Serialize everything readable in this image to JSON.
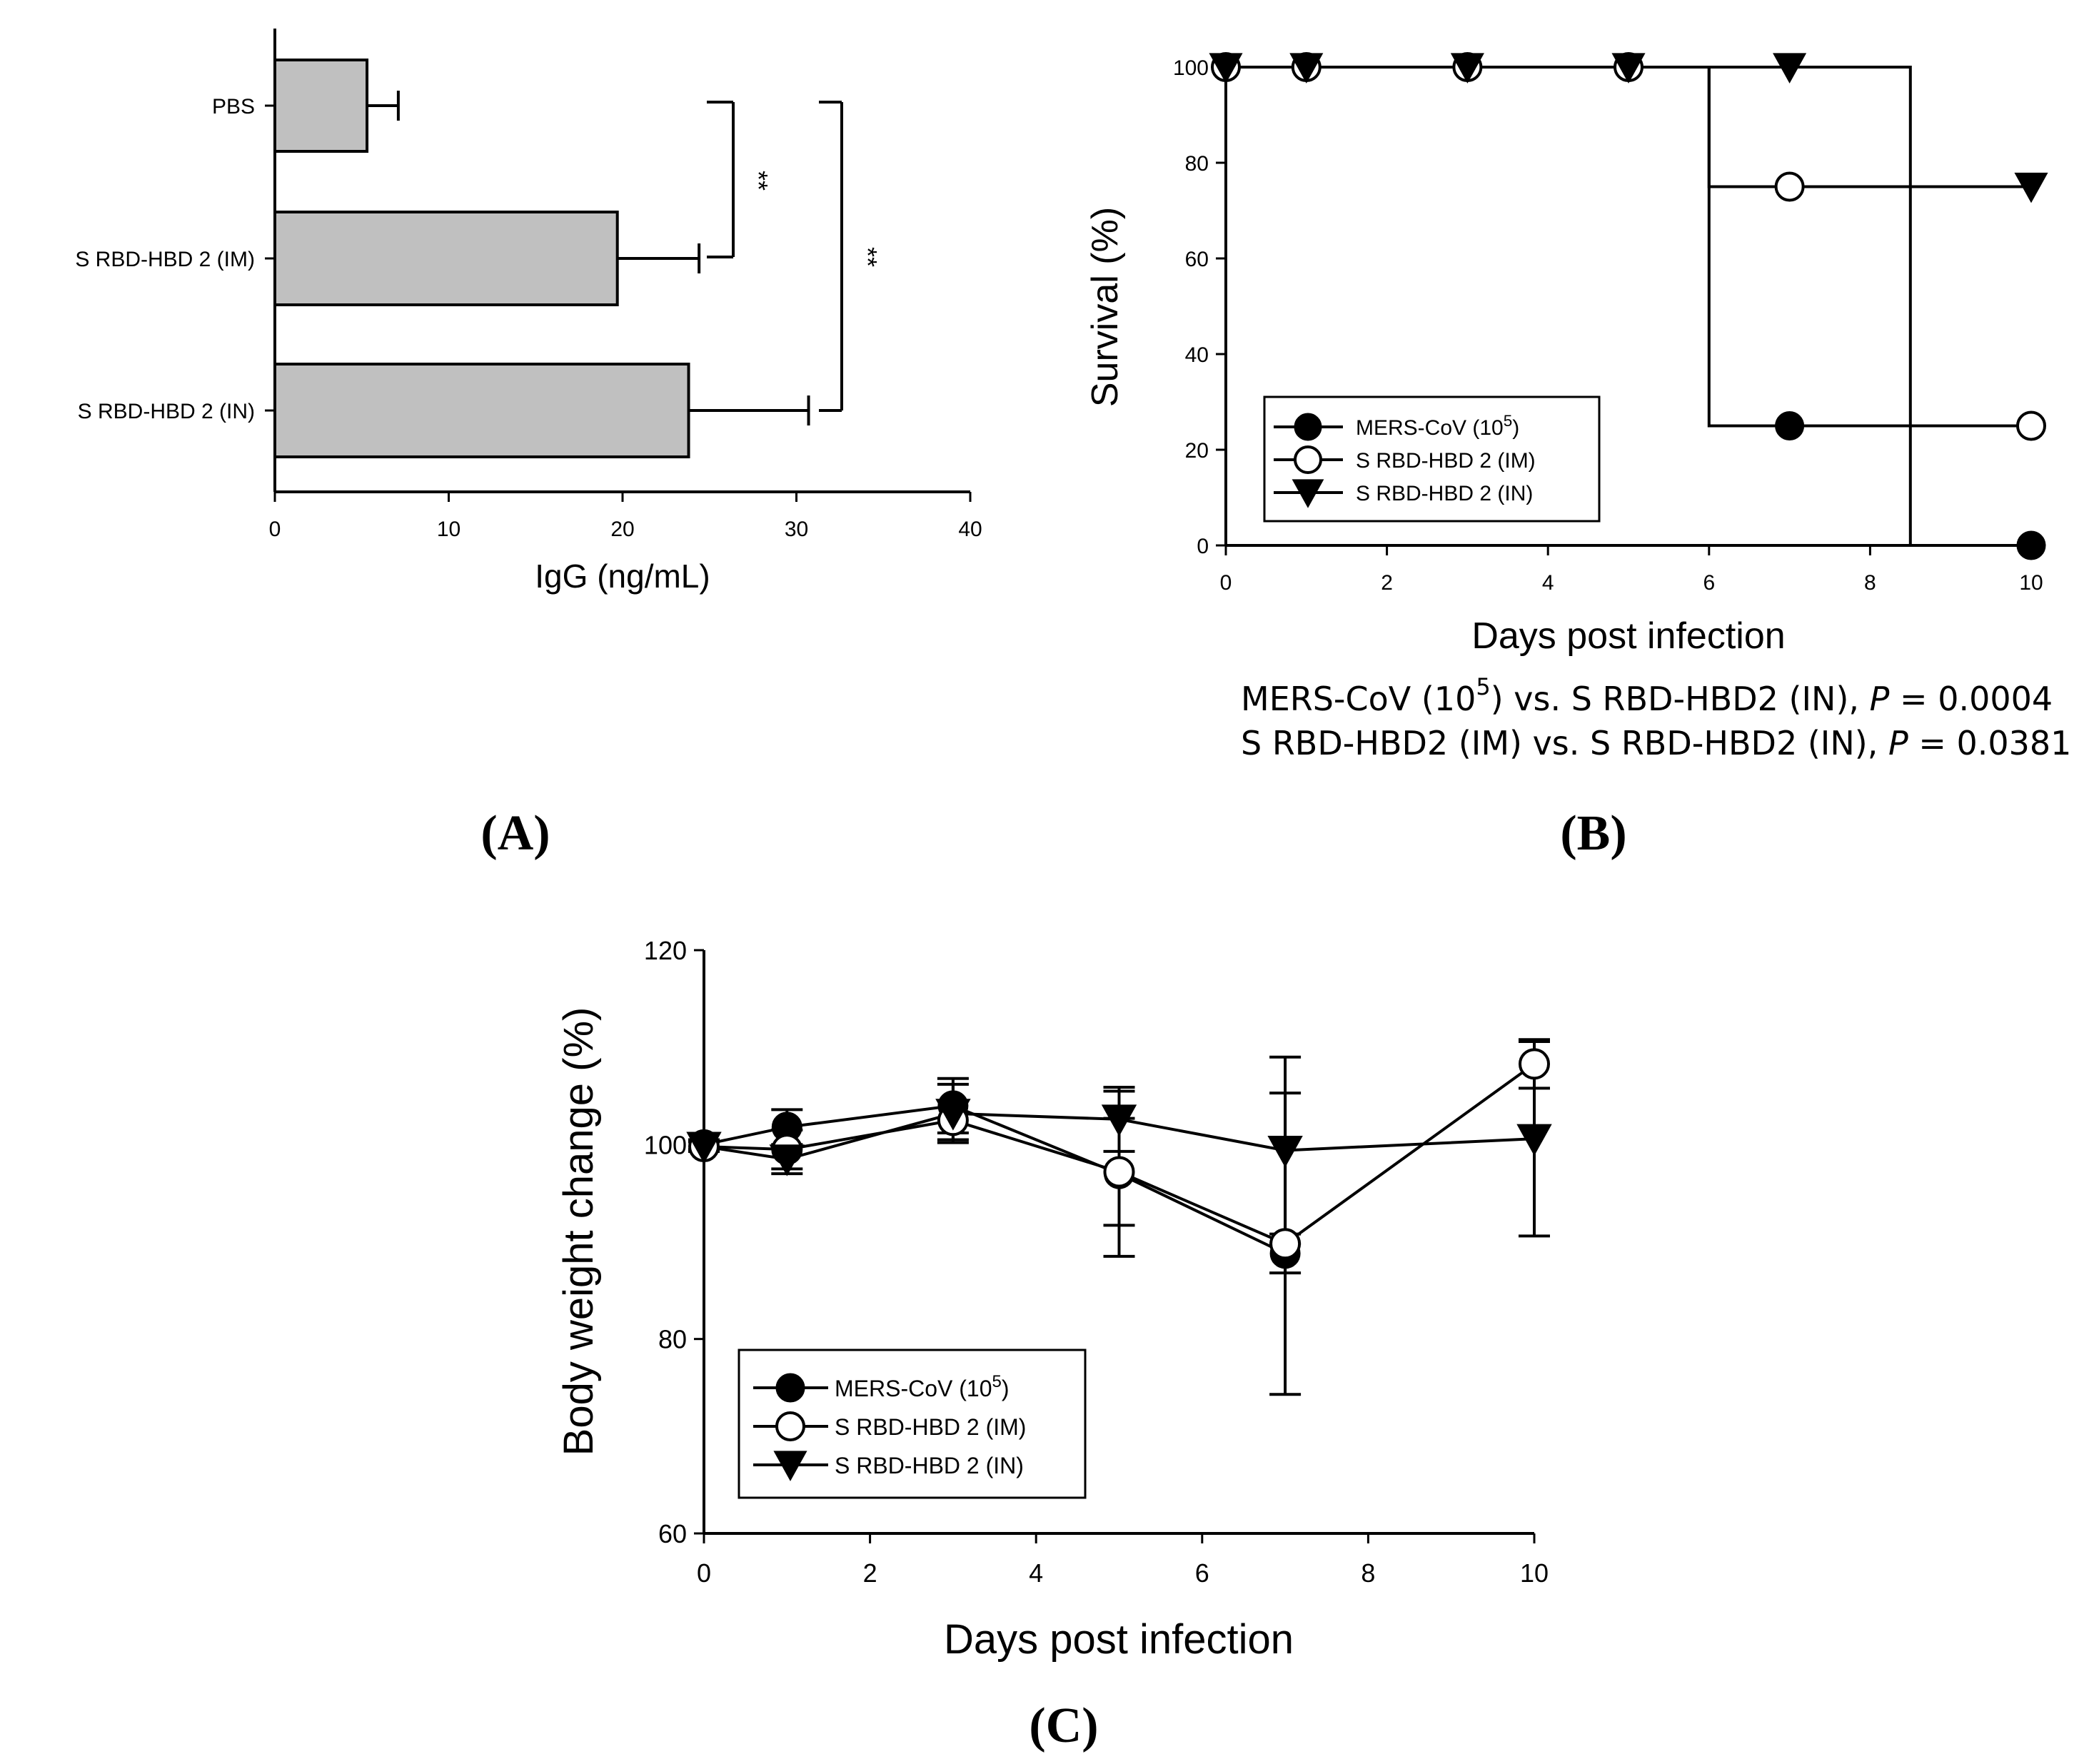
{
  "chart_data": [
    {
      "panel": "(A)",
      "type": "bar",
      "orientation": "horizontal",
      "categories": [
        "PBS",
        "S RBD-HBD 2 (IM)",
        "S RBD-HBD 2 (IN)"
      ],
      "values": [
        5.3,
        19.7,
        23.8
      ],
      "errors": [
        1.8,
        4.7,
        6.9
      ],
      "xlabel": "IgG (ng/mL)",
      "xlim": [
        0,
        40
      ],
      "xticks": [
        "0",
        "10",
        "20",
        "30",
        "40"
      ],
      "bar_color": "#c0c0c0",
      "annotations": [
        {
          "text": "**",
          "between": [
            "PBS",
            "S RBD-HBD 2 (IM)"
          ]
        },
        {
          "text": "**",
          "between": [
            "PBS",
            "S RBD-HBD 2 (IN)"
          ]
        }
      ]
    },
    {
      "panel": "(B)",
      "type": "line",
      "subtype": "survival-step",
      "xlabel": "Days post infection",
      "ylabel": "Survival (%)",
      "xlim": [
        0,
        10
      ],
      "ylim": [
        0,
        100
      ],
      "xticks": [
        "0",
        "2",
        "4",
        "6",
        "8",
        "10"
      ],
      "yticks": [
        "0",
        "20",
        "40",
        "60",
        "80",
        "100"
      ],
      "series": [
        {
          "name": "MERS-CoV (10",
          "sup": "5",
          "close": ")",
          "marker": "filled-circle",
          "steps": [
            [
              0,
              100
            ],
            [
              6,
              100
            ],
            [
              6,
              25
            ],
            [
              8.5,
              25
            ],
            [
              8.5,
              0
            ],
            [
              10,
              0
            ]
          ],
          "markers": [
            [
              0,
              100
            ],
            [
              1,
              100
            ],
            [
              3,
              100
            ],
            [
              5,
              100
            ],
            [
              7,
              25
            ],
            [
              10,
              0
            ]
          ]
        },
        {
          "name": "S RBD-HBD 2 (IM)",
          "sup": "",
          "close": "",
          "marker": "open-circle",
          "steps": [
            [
              0,
              100
            ],
            [
              6,
              100
            ],
            [
              6,
              75
            ],
            [
              8.5,
              75
            ],
            [
              8.5,
              25
            ],
            [
              10,
              25
            ]
          ],
          "markers": [
            [
              0,
              100
            ],
            [
              1,
              100
            ],
            [
              3,
              100
            ],
            [
              5,
              100
            ],
            [
              7,
              75
            ],
            [
              10,
              25
            ]
          ]
        },
        {
          "name": "S RBD-HBD 2 (IN)",
          "sup": "",
          "close": "",
          "marker": "filled-triangle-down",
          "steps": [
            [
              0,
              100
            ],
            [
              8.5,
              100
            ],
            [
              8.5,
              75
            ],
            [
              10,
              75
            ]
          ],
          "markers": [
            [
              0,
              100
            ],
            [
              1,
              100
            ],
            [
              3,
              100
            ],
            [
              5,
              100
            ],
            [
              7,
              100
            ],
            [
              10,
              75
            ]
          ]
        }
      ],
      "stats": [
        {
          "pre": "MERS-CoV (10",
          "sup": "5",
          "mid": ") vs. S RBD-HBD2 (IN), ",
          "p": "P",
          "val": " = 0.0004"
        },
        {
          "pre": "S RBD-HBD2 (IM) vs. S RBD-HBD2 (IN), ",
          "sup": "",
          "mid": "",
          "p": "P",
          "val": " = 0.0381"
        }
      ]
    },
    {
      "panel": "(C)",
      "type": "line",
      "xlabel": "Days post infection",
      "ylabel": "Body weight change (%)",
      "xlim": [
        0,
        10
      ],
      "ylim": [
        60,
        120
      ],
      "xticks": [
        "0",
        "2",
        "4",
        "6",
        "8",
        "10"
      ],
      "yticks": [
        "60",
        "80",
        "100",
        "120"
      ],
      "series": [
        {
          "name": "MERS-CoV (10",
          "sup": "5",
          "close": ")",
          "marker": "filled-circle",
          "x": [
            0,
            1,
            3,
            5,
            7
          ],
          "y": [
            100,
            101.8,
            104,
            97,
            88.8
          ],
          "err": [
            0.5,
            1.8,
            2.8,
            8.5,
            2.0
          ]
        },
        {
          "name": "S RBD-HBD 2 (IM)",
          "sup": "",
          "close": "",
          "marker": "open-circle",
          "x": [
            0,
            1,
            3,
            5,
            7,
            10
          ],
          "y": [
            99.8,
            99.5,
            102.5,
            97.2,
            89.8,
            108.3
          ],
          "err": [
            0.5,
            2.0,
            2.0,
            5.5,
            15.5,
            2.5
          ]
        },
        {
          "name": "S RBD-HBD 2 (IN)",
          "sup": "",
          "close": "",
          "marker": "filled-triangle-down",
          "x": [
            0,
            1,
            3,
            5,
            7,
            10
          ],
          "y": [
            99.8,
            98.5,
            103.2,
            102.6,
            99.4,
            100.6
          ],
          "err": [
            0.5,
            1.5,
            3.0,
            3.3,
            9.6,
            10.0
          ]
        }
      ]
    }
  ],
  "panel_labels": {
    "a": "(A)",
    "b": "(B)",
    "c": "(C)"
  },
  "colors": {
    "ink": "#000000",
    "bar": "#c0c0c0",
    "background": "#ffffff"
  }
}
